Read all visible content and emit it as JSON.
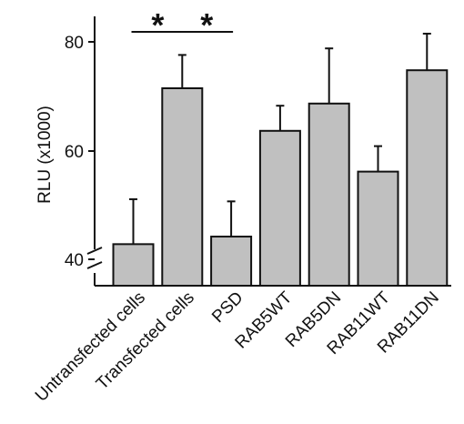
{
  "chart_data": {
    "type": "bar",
    "title": "",
    "xlabel": "",
    "ylabel": "RLU (x1000)",
    "ylim": [
      37,
      85
    ],
    "yticks": [
      40,
      60,
      80
    ],
    "axis_break": true,
    "grid": false,
    "legend": "none",
    "bar_color": "#c0c0c0",
    "categories": [
      "Untransfected cells",
      "Transfected cells",
      "PSD",
      "RAB5WT",
      "RAB5DN",
      "RAB11WT",
      "RAB11DN"
    ],
    "values": [
      42.8,
      71.5,
      44.2,
      63.7,
      68.7,
      56.2,
      74.8
    ],
    "error": [
      8.3,
      6.1,
      6.5,
      4.6,
      10.1,
      4.7,
      6.7
    ],
    "significance": [
      {
        "from": 0,
        "to": 1,
        "label": "*"
      },
      {
        "from": 1,
        "to": 2,
        "label": "*"
      }
    ]
  }
}
